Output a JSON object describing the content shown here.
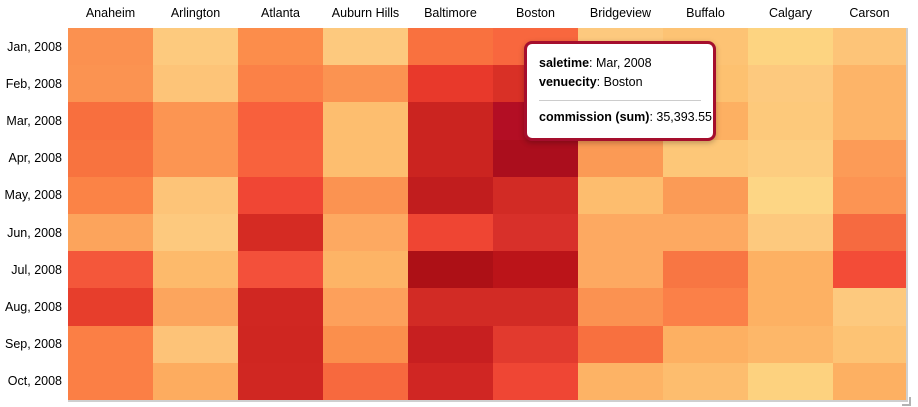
{
  "chart_data": {
    "type": "heatmap",
    "x_field": "venuecity",
    "y_field": "saletime",
    "value_field": "commission (sum)",
    "x_categories": [
      "Anaheim",
      "Arlington",
      "Atlanta",
      "Auburn Hills",
      "Baltimore",
      "Boston",
      "Bridgeview",
      "Buffalo",
      "Calgary",
      "Carson"
    ],
    "y_categories": [
      "Jan, 2008",
      "Feb, 2008",
      "Mar, 2008",
      "Apr, 2008",
      "May, 2008",
      "Jun, 2008",
      "Jul, 2008",
      "Aug, 2008",
      "Sep, 2008",
      "Oct, 2008"
    ],
    "color_scale": {
      "low": "#fdd685",
      "high": "#ab0e1d"
    },
    "legend": "off",
    "known_values": [
      {
        "saletime": "Mar, 2008",
        "venuecity": "Boston",
        "commission_sum": "35,393.55"
      }
    ],
    "color_matrix": [
      [
        "#fb9150",
        "#fdca7e",
        "#fc8d4b",
        "#fdc97e",
        "#f9713f",
        "#f8673e",
        "#fdc97e",
        "#fdc374",
        "#fdd481",
        "#fdc478"
      ],
      [
        "#fb9351",
        "#fdc478",
        "#fb8147",
        "#fb9351",
        "#e8392b",
        "#d93026",
        "#fdbd6e",
        "#fdc170",
        "#fdc97e",
        "#fdb468"
      ],
      [
        "#f86f3e",
        "#fc9552",
        "#f8603c",
        "#fdbe6f",
        "#cb2420",
        "#b30e24",
        "#fba35c",
        "#fdb062",
        "#fdc97b",
        "#fdb468"
      ],
      [
        "#f8733f",
        "#fc9552",
        "#f8623d",
        "#fdbe6f",
        "#cb2420",
        "#ab0e1d",
        "#fb9a55",
        "#fdc778",
        "#fdcd80",
        "#fc9b57"
      ],
      [
        "#fb8346",
        "#fdc478",
        "#f04634",
        "#fb9351",
        "#c11d1e",
        "#d22b25",
        "#fdbd6e",
        "#fb9b56",
        "#fdd685",
        "#fc9453"
      ],
      [
        "#fca45c",
        "#fdc97e",
        "#d52b23",
        "#fda961",
        "#ef4533",
        "#d8302a",
        "#fda961",
        "#fda961",
        "#fdc97e",
        "#f66a40"
      ],
      [
        "#f4573a",
        "#fdba6b",
        "#f3503a",
        "#fdb466",
        "#ad1016",
        "#bb1419",
        "#fda961",
        "#f87643",
        "#fdb163",
        "#f34c37"
      ],
      [
        "#e73e2c",
        "#fca55d",
        "#d02722",
        "#fda05b",
        "#d22b25",
        "#d22b25",
        "#fb9251",
        "#fb8048",
        "#fdb163",
        "#fdc97e"
      ],
      [
        "#fb7f45",
        "#fdc378",
        "#cf2621",
        "#fb8f4c",
        "#c71f20",
        "#e23a2e",
        "#f8703f",
        "#fdb062",
        "#fdb769",
        "#fdc374"
      ],
      [
        "#fb7f45",
        "#fdac5f",
        "#d02722",
        "#f7693e",
        "#d02623",
        "#ef4634",
        "#fdb365",
        "#fdbd6e",
        "#fdd27f",
        "#fdb062"
      ]
    ]
  },
  "tooltip": {
    "border_color": "#a50e2d",
    "rows": [
      {
        "label": "saletime",
        "value": ": Mar, 2008"
      },
      {
        "label": "venuecity",
        "value": ": Boston"
      },
      {
        "label": "commission (sum)",
        "value": ": 35,393.55"
      }
    ]
  }
}
